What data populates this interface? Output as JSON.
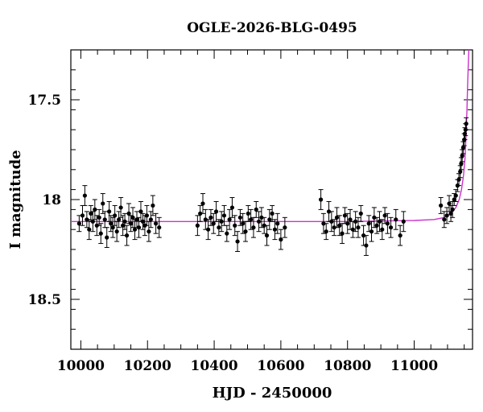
{
  "chart_data": {
    "type": "scatter",
    "title": "OGLE-2026-BLG-0495",
    "xlabel": "HJD - 2450000",
    "ylabel": "I magnitude",
    "xlim": [
      9970,
      11175
    ],
    "ylim": [
      18.75,
      17.25
    ],
    "y_inverted": true,
    "grid": false,
    "x_ticks": [
      10000,
      10200,
      10400,
      10600,
      10800,
      11000
    ],
    "x_tick_labels": [
      "10000",
      "10200",
      "10400",
      "10600",
      "10800",
      "11000"
    ],
    "y_ticks": [
      17.5,
      18,
      18.5
    ],
    "y_tick_labels": [
      "17.5",
      "18",
      "18.5"
    ],
    "marker_color": "#000000",
    "model_color": "#cc33cc",
    "series": [
      {
        "kind": "points_with_errorbars",
        "x": [
          9995,
          10005,
          10012,
          10018,
          10025,
          10030,
          10036,
          10042,
          10048,
          10055,
          10060,
          10066,
          10072,
          10078,
          10085,
          10090,
          10096,
          10102,
          10108,
          10114,
          10120,
          10126,
          10132,
          10138,
          10144,
          10150,
          10156,
          10162,
          10168,
          10174,
          10180,
          10186,
          10192,
          10198,
          10204,
          10210,
          10216,
          10225,
          10235,
          10350,
          10358,
          10366,
          10374,
          10382,
          10390,
          10398,
          10406,
          10414,
          10422,
          10430,
          10438,
          10446,
          10454,
          10462,
          10470,
          10478,
          10486,
          10494,
          10502,
          10510,
          10518,
          10526,
          10534,
          10542,
          10550,
          10558,
          10566,
          10574,
          10582,
          10590,
          10600,
          10612,
          10720,
          10728,
          10736,
          10744,
          10752,
          10760,
          10768,
          10776,
          10784,
          10792,
          10800,
          10808,
          10816,
          10824,
          10832,
          10840,
          10848,
          10856,
          10864,
          10872,
          10880,
          10888,
          10896,
          10904,
          10912,
          10920,
          10930,
          10945,
          10958,
          10968,
          11080,
          11090,
          11098,
          11105,
          11110,
          11115,
          11120,
          11125,
          11130,
          11134,
          11138,
          11141,
          11144,
          11147,
          11150,
          11152,
          11154,
          11156
        ],
        "y": [
          18.12,
          18.08,
          17.98,
          18.1,
          18.15,
          18.07,
          18.11,
          18.05,
          18.13,
          18.09,
          18.17,
          18.02,
          18.1,
          18.19,
          18.06,
          18.12,
          18.14,
          18.08,
          18.16,
          18.1,
          18.04,
          18.13,
          18.11,
          18.18,
          18.07,
          18.12,
          18.09,
          18.15,
          18.1,
          18.14,
          18.06,
          18.11,
          18.13,
          18.08,
          18.16,
          18.1,
          18.03,
          18.12,
          18.14,
          18.13,
          18.07,
          18.02,
          18.1,
          18.15,
          18.09,
          18.12,
          18.06,
          18.14,
          18.11,
          18.08,
          18.17,
          18.1,
          18.04,
          18.13,
          18.21,
          18.09,
          18.12,
          18.16,
          18.07,
          18.1,
          18.14,
          18.05,
          18.11,
          18.09,
          18.13,
          18.18,
          18.1,
          18.07,
          18.15,
          18.12,
          18.2,
          18.14,
          18.0,
          18.12,
          18.16,
          18.06,
          18.11,
          18.14,
          18.09,
          18.13,
          18.17,
          18.08,
          18.12,
          18.1,
          18.15,
          18.11,
          18.14,
          18.07,
          18.18,
          18.23,
          18.12,
          18.16,
          18.09,
          18.13,
          18.11,
          18.15,
          18.08,
          18.12,
          18.14,
          18.1,
          18.18,
          18.11,
          18.03,
          18.1,
          18.08,
          18.02,
          18.07,
          18.05,
          18.0,
          17.98,
          17.93,
          17.9,
          17.86,
          17.82,
          17.78,
          17.74,
          17.7,
          17.67,
          17.65,
          17.62
        ],
        "yerr": [
          0.04,
          0.05,
          0.05,
          0.04,
          0.05,
          0.04,
          0.05,
          0.05,
          0.05,
          0.04,
          0.05,
          0.05,
          0.04,
          0.05,
          0.05,
          0.04,
          0.05,
          0.05,
          0.05,
          0.04,
          0.05,
          0.05,
          0.04,
          0.05,
          0.05,
          0.04,
          0.05,
          0.05,
          0.04,
          0.05,
          0.05,
          0.04,
          0.05,
          0.05,
          0.05,
          0.04,
          0.05,
          0.05,
          0.05,
          0.05,
          0.04,
          0.05,
          0.05,
          0.05,
          0.04,
          0.05,
          0.05,
          0.04,
          0.05,
          0.05,
          0.04,
          0.05,
          0.05,
          0.05,
          0.05,
          0.04,
          0.05,
          0.05,
          0.04,
          0.05,
          0.05,
          0.04,
          0.05,
          0.05,
          0.04,
          0.05,
          0.05,
          0.04,
          0.05,
          0.05,
          0.05,
          0.05,
          0.05,
          0.05,
          0.04,
          0.05,
          0.05,
          0.04,
          0.05,
          0.05,
          0.05,
          0.04,
          0.05,
          0.05,
          0.04,
          0.05,
          0.05,
          0.04,
          0.05,
          0.05,
          0.04,
          0.05,
          0.05,
          0.04,
          0.05,
          0.05,
          0.04,
          0.05,
          0.05,
          0.05,
          0.05,
          0.05,
          0.04,
          0.04,
          0.04,
          0.04,
          0.04,
          0.04,
          0.03,
          0.03,
          0.03,
          0.03,
          0.03,
          0.03,
          0.03,
          0.03,
          0.03,
          0.03,
          0.03,
          0.03
        ]
      },
      {
        "kind": "model_curve",
        "x": [
          9970,
          10200,
          10500,
          10800,
          11000,
          11060,
          11090,
          11110,
          11125,
          11135,
          11142,
          11148,
          11152,
          11155,
          11158,
          11160,
          11162,
          11164
        ],
        "y": [
          18.11,
          18.11,
          18.11,
          18.11,
          18.105,
          18.1,
          18.09,
          18.07,
          18.04,
          18.0,
          17.95,
          17.88,
          17.8,
          17.7,
          17.56,
          17.44,
          17.34,
          17.25
        ]
      }
    ]
  }
}
